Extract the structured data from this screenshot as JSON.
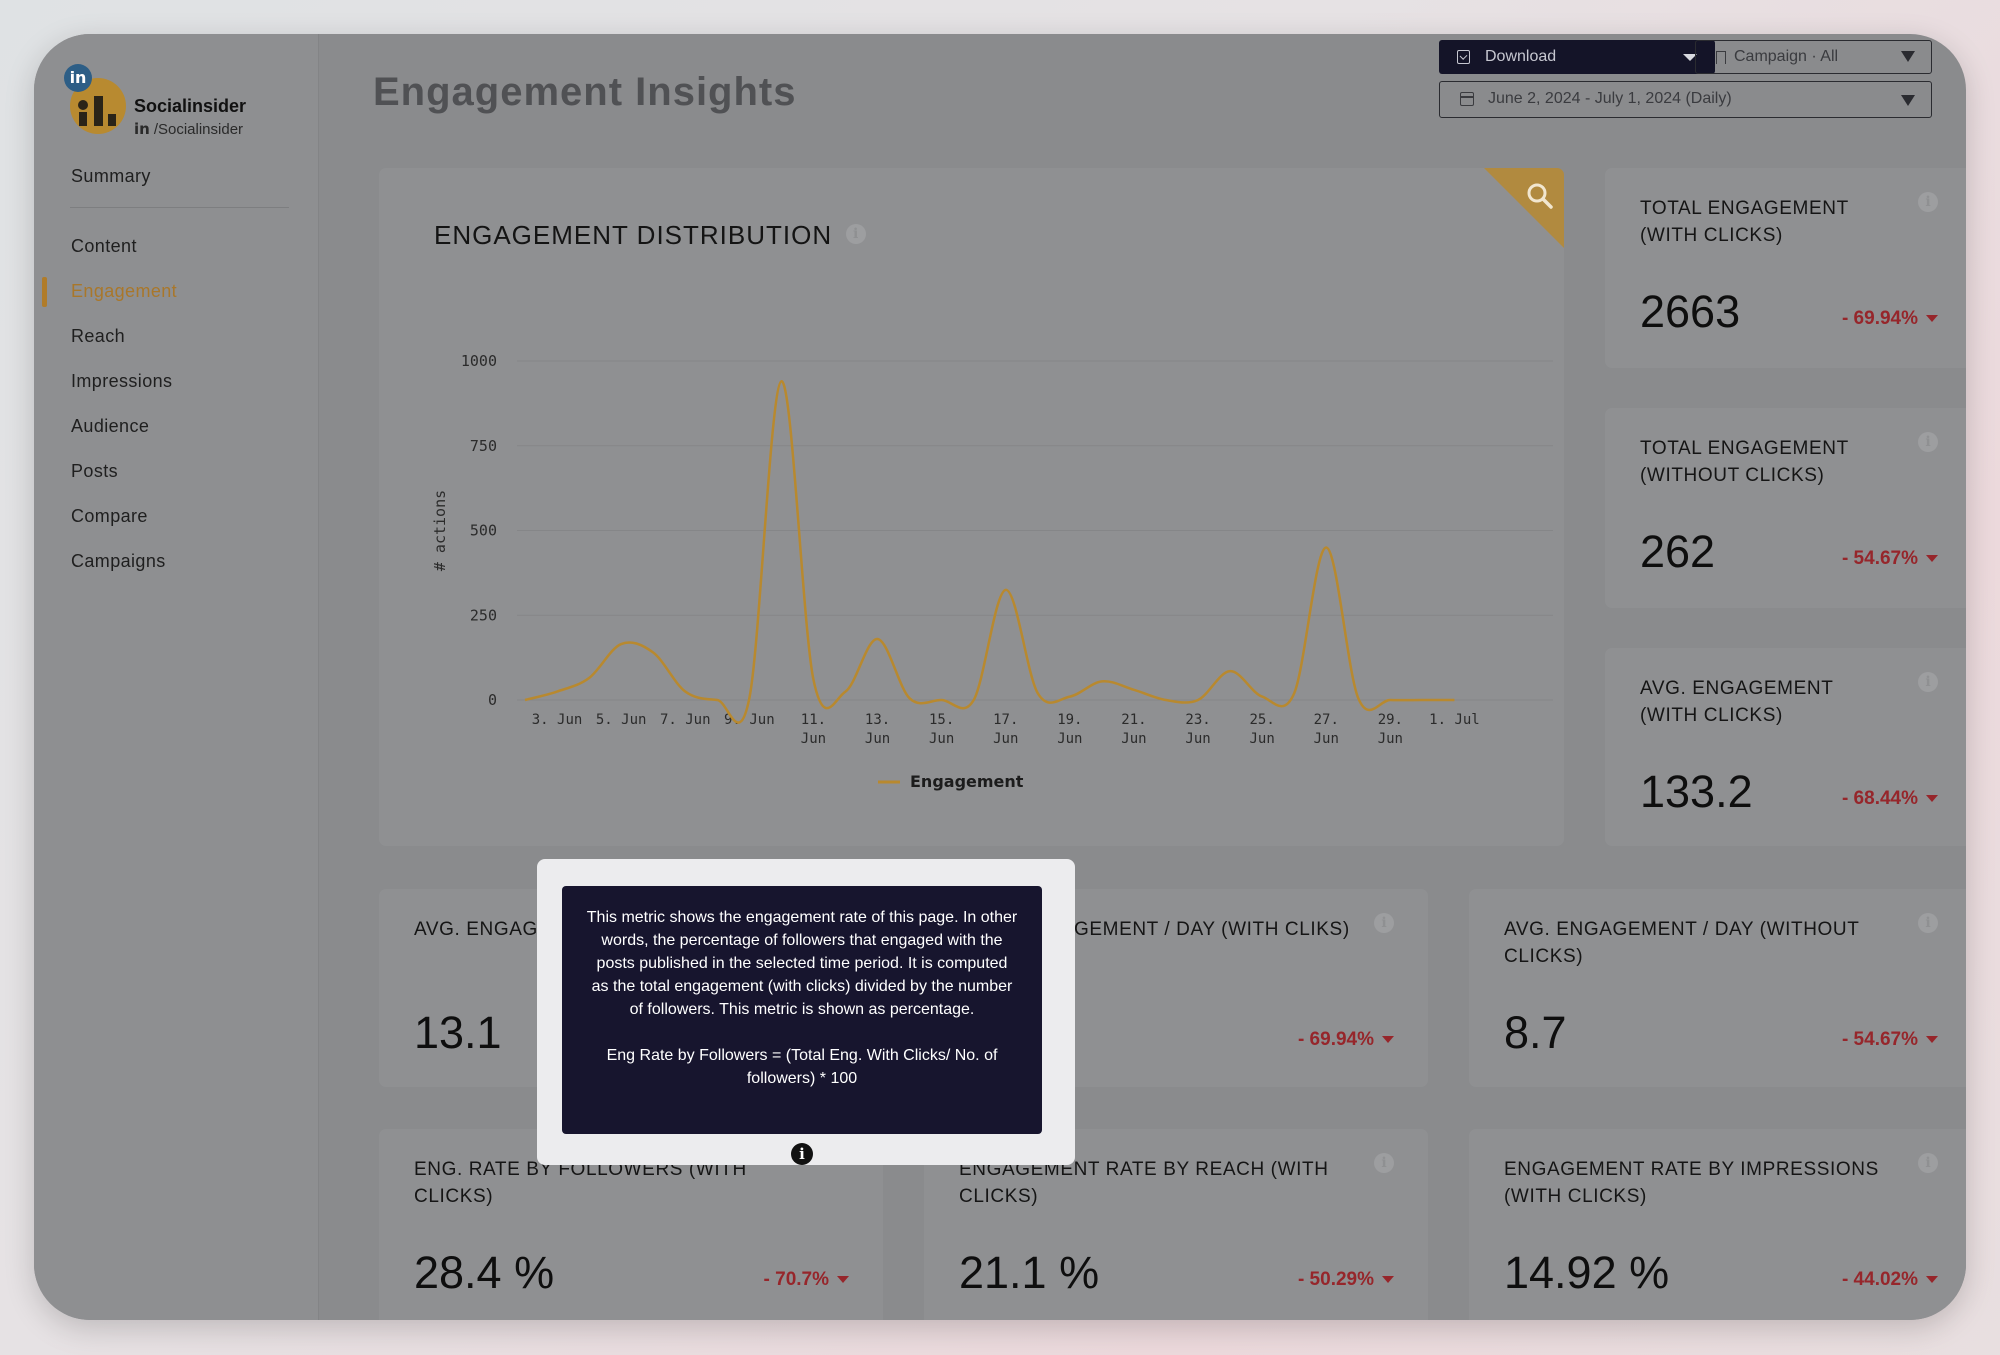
{
  "brand": {
    "name": "Socialinsider",
    "network_badge": "in",
    "handle_prefix": "in",
    "handle": "/Socialinsider"
  },
  "sidebar": {
    "items": [
      {
        "label": "Summary"
      },
      {
        "label": "Content"
      },
      {
        "label": "Engagement",
        "active": true
      },
      {
        "label": "Reach"
      },
      {
        "label": "Impressions"
      },
      {
        "label": "Audience"
      },
      {
        "label": "Posts"
      },
      {
        "label": "Compare"
      },
      {
        "label": "Campaigns"
      }
    ]
  },
  "header": {
    "title": "Engagement Insights",
    "download_label": "Download",
    "campaign_label": "Campaign · All",
    "date_range": "June 2, 2024 - July 1, 2024 (Daily)"
  },
  "chart_card": {
    "title": "ENGAGEMENT DISTRIBUTION"
  },
  "chart_data": {
    "type": "line",
    "title": "ENGAGEMENT DISTRIBUTION",
    "ylabel": "# actions",
    "xlabel": "",
    "ylim": [
      0,
      1000
    ],
    "yticks": [
      0,
      250,
      500,
      750,
      1000
    ],
    "x_tick_labels": [
      [
        "3. Jun"
      ],
      [
        "5. Jun"
      ],
      [
        "7. Jun"
      ],
      [
        "9. Jun"
      ],
      [
        "11.",
        "Jun"
      ],
      [
        "13.",
        "Jun"
      ],
      [
        "15.",
        "Jun"
      ],
      [
        "17.",
        "Jun"
      ],
      [
        "19.",
        "Jun"
      ],
      [
        "21.",
        "Jun"
      ],
      [
        "23.",
        "Jun"
      ],
      [
        "25.",
        "Jun"
      ],
      [
        "27.",
        "Jun"
      ],
      [
        "29.",
        "Jun"
      ],
      [
        "1. Jul"
      ]
    ],
    "legend_position": "bottom",
    "grid": true,
    "color": "#b8892f",
    "x": [
      "2. Jun",
      "3. Jun",
      "4. Jun",
      "5. Jun",
      "6. Jun",
      "7. Jun",
      "8. Jun",
      "9. Jun",
      "10. Jun",
      "11. Jun",
      "12. Jun",
      "13. Jun",
      "14. Jun",
      "15. Jun",
      "16. Jun",
      "17. Jun",
      "18. Jun",
      "19. Jun",
      "20. Jun",
      "21. Jun",
      "22. Jun",
      "23. Jun",
      "24. Jun",
      "25. Jun",
      "26. Jun",
      "27. Jun",
      "28. Jun",
      "29. Jun",
      "30. Jun",
      "1. Jul"
    ],
    "series": [
      {
        "name": "Engagement",
        "values": [
          0,
          25,
          65,
          165,
          140,
          25,
          0,
          5,
          940,
          60,
          25,
          180,
          5,
          0,
          0,
          325,
          20,
          10,
          55,
          30,
          0,
          0,
          85,
          10,
          20,
          450,
          5,
          0,
          0,
          0
        ]
      }
    ]
  },
  "metrics": [
    {
      "id": "total-engagement-with-clicks",
      "title_lines": [
        "TOTAL ENGAGEMENT",
        "(WITH CLICKS)"
      ],
      "value": "2663",
      "change": "- 69.94%"
    },
    {
      "id": "total-engagement-without-clicks",
      "title_lines": [
        "TOTAL ENGAGEMENT",
        "(WITHOUT CLICKS)"
      ],
      "value": "262",
      "change": "- 54.67%"
    },
    {
      "id": "avg-engagement-with-clicks",
      "title_lines": [
        "AVG. ENGAGEMENT",
        "(WITH CLICKS)"
      ],
      "value": "133.2",
      "change": "- 68.44%"
    },
    {
      "id": "avg-engagement",
      "title_lines": [
        "AVG. ENGAGEMENT"
      ],
      "value": "13.1",
      "change": ""
    },
    {
      "id": "avg-engagement-day-with-cliks",
      "title_lines": [
        "GEMENT / DAY (WITH CLIKS)"
      ],
      "value": "",
      "change": "- 69.94%"
    },
    {
      "id": "avg-engagement-day-without-clicks",
      "title_lines": [
        "AVG. ENGAGEMENT / DAY (WITHOUT",
        "CLICKS)"
      ],
      "value": "8.7",
      "change": "- 54.67%"
    },
    {
      "id": "eng-rate-by-followers",
      "title_lines": [
        "ENG. RATE BY FOLLOWERS (WITH",
        "CLICKS)"
      ],
      "value": "28.4 %",
      "change": "- 70.7%"
    },
    {
      "id": "engagement-rate-by-reach",
      "title_lines": [
        "ENGAGEMENT RATE BY REACH (WITH",
        "CLICKS)"
      ],
      "value": "21.1 %",
      "change": "- 50.29%"
    },
    {
      "id": "engagement-rate-by-impressions",
      "title_lines": [
        "ENGAGEMENT RATE BY IMPRESSIONS",
        "(WITH CLICKS)"
      ],
      "value": "14.92 %",
      "change": "- 44.02%"
    }
  ],
  "tooltip": {
    "description": "This metric shows the engagement rate of this page. In other words, the percentage of followers that engaged with the posts published in the selected time period. It is computed as the total engagement (with clicks) divided by the number of followers. This metric is shown as percentage.",
    "formula": "Eng Rate by Followers = (Total Eng. With Clicks/ No. of followers) * 100"
  },
  "colors": {
    "accent": "#b07c2a",
    "negative": "#96262b",
    "tooltip_bg": "#17152e",
    "download_bg": "#141428"
  },
  "icons": [
    "linkedin-icon",
    "download-icon",
    "bookmark-icon",
    "calendar-icon",
    "search-icon",
    "info-icon",
    "chevron-down-icon"
  ]
}
